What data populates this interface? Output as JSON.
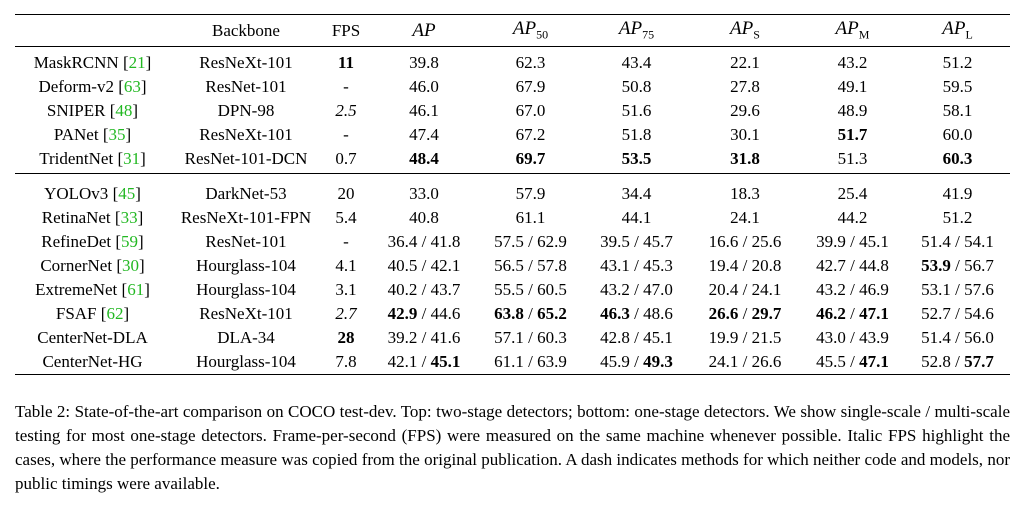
{
  "table": {
    "header": [
      "Backbone",
      "FPS",
      {
        "base": "AP"
      },
      {
        "base": "AP",
        "sub": "50"
      },
      {
        "base": "AP",
        "sub": "75"
      },
      {
        "base": "AP",
        "sub": "S"
      },
      {
        "base": "AP",
        "sub": "M"
      },
      {
        "base": "AP",
        "sub": "L"
      }
    ],
    "cite_open": "[",
    "cite_close": "]",
    "separator": "/",
    "groups": [
      [
        {
          "method": "MaskRCNN",
          "ref": "21",
          "backbone": "ResNeXt-101",
          "fps": {
            "text": "11",
            "bold": true
          },
          "metrics": [
            [
              "39.8"
            ],
            [
              "62.3"
            ],
            [
              "43.4"
            ],
            [
              "22.1"
            ],
            [
              "43.2"
            ],
            [
              "51.2"
            ]
          ]
        },
        {
          "method": "Deform-v2",
          "ref": "63",
          "backbone": "ResNet-101",
          "fps": "-",
          "metrics": [
            [
              "46.0"
            ],
            [
              "67.9"
            ],
            [
              "50.8"
            ],
            [
              "27.8"
            ],
            [
              "49.1"
            ],
            [
              "59.5"
            ]
          ]
        },
        {
          "method": "SNIPER",
          "ref": "48",
          "backbone": "DPN-98",
          "fps": {
            "text": "2.5",
            "italic": true
          },
          "metrics": [
            [
              "46.1"
            ],
            [
              "67.0"
            ],
            [
              "51.6"
            ],
            [
              "29.6"
            ],
            [
              "48.9"
            ],
            [
              "58.1"
            ]
          ]
        },
        {
          "method": "PANet",
          "ref": "35",
          "backbone": "ResNeXt-101",
          "fps": "-",
          "metrics": [
            [
              "47.4"
            ],
            [
              "67.2"
            ],
            [
              "51.8"
            ],
            [
              "30.1"
            ],
            [
              {
                "text": "51.7",
                "bold": true
              }
            ],
            [
              "60.0"
            ]
          ]
        },
        {
          "method": "TridentNet",
          "ref": "31",
          "backbone": "ResNet-101-DCN",
          "fps": "0.7",
          "metrics": [
            [
              {
                "text": "48.4",
                "bold": true
              }
            ],
            [
              {
                "text": "69.7",
                "bold": true
              }
            ],
            [
              {
                "text": "53.5",
                "bold": true
              }
            ],
            [
              {
                "text": "31.8",
                "bold": true
              }
            ],
            [
              "51.3"
            ],
            [
              {
                "text": "60.3",
                "bold": true
              }
            ]
          ]
        }
      ],
      [
        {
          "method": "YOLOv3",
          "ref": "45",
          "backbone": "DarkNet-53",
          "fps": "20",
          "metrics": [
            [
              "33.0"
            ],
            [
              "57.9"
            ],
            [
              "34.4"
            ],
            [
              "18.3"
            ],
            [
              "25.4"
            ],
            [
              "41.9"
            ]
          ]
        },
        {
          "method": "RetinaNet",
          "ref": "33",
          "backbone": "ResNeXt-101-FPN",
          "fps": "5.4",
          "metrics": [
            [
              "40.8"
            ],
            [
              "61.1"
            ],
            [
              "44.1"
            ],
            [
              "24.1"
            ],
            [
              "44.2"
            ],
            [
              "51.2"
            ]
          ]
        },
        {
          "method": "RefineDet",
          "ref": "59",
          "backbone": "ResNet-101",
          "fps": "-",
          "metrics": [
            [
              "36.4",
              "41.8"
            ],
            [
              "57.5",
              "62.9"
            ],
            [
              "39.5",
              "45.7"
            ],
            [
              "16.6",
              "25.6"
            ],
            [
              "39.9",
              "45.1"
            ],
            [
              "51.4",
              "54.1"
            ]
          ]
        },
        {
          "method": "CornerNet",
          "ref": "30",
          "backbone": "Hourglass-104",
          "fps": "4.1",
          "metrics": [
            [
              "40.5",
              "42.1"
            ],
            [
              "56.5",
              "57.8"
            ],
            [
              "43.1",
              "45.3"
            ],
            [
              "19.4",
              "20.8"
            ],
            [
              "42.7",
              "44.8"
            ],
            [
              {
                "text": "53.9",
                "bold": true
              },
              "56.7"
            ]
          ]
        },
        {
          "method": "ExtremeNet",
          "ref": "61",
          "backbone": "Hourglass-104",
          "fps": "3.1",
          "metrics": [
            [
              "40.2",
              "43.7"
            ],
            [
              "55.5",
              "60.5"
            ],
            [
              "43.2",
              "47.0"
            ],
            [
              "20.4",
              "24.1"
            ],
            [
              "43.2",
              "46.9"
            ],
            [
              "53.1",
              "57.6"
            ]
          ]
        },
        {
          "method": "FSAF",
          "ref": "62",
          "backbone": "ResNeXt-101",
          "fps": {
            "text": "2.7",
            "italic": true
          },
          "metrics": [
            [
              {
                "text": "42.9",
                "bold": true
              },
              "44.6"
            ],
            [
              {
                "text": "63.8",
                "bold": true
              },
              {
                "text": "65.2",
                "bold": true
              }
            ],
            [
              {
                "text": "46.3",
                "bold": true
              },
              "48.6"
            ],
            [
              {
                "text": "26.6",
                "bold": true
              },
              {
                "text": "29.7",
                "bold": true
              }
            ],
            [
              {
                "text": "46.2",
                "bold": true
              },
              {
                "text": "47.1",
                "bold": true
              }
            ],
            [
              "52.7",
              "54.6"
            ]
          ]
        },
        {
          "method": "CenterNet-DLA",
          "backbone": "DLA-34",
          "fps": {
            "text": "28",
            "bold": true
          },
          "metrics": [
            [
              "39.2",
              "41.6"
            ],
            [
              "57.1",
              "60.3"
            ],
            [
              "42.8",
              "45.1"
            ],
            [
              "19.9",
              "21.5"
            ],
            [
              "43.0",
              "43.9"
            ],
            [
              "51.4",
              "56.0"
            ]
          ]
        },
        {
          "method": "CenterNet-HG",
          "backbone": "Hourglass-104",
          "fps": "7.8",
          "metrics": [
            [
              "42.1",
              {
                "text": "45.1",
                "bold": true
              }
            ],
            [
              "61.1",
              "63.9"
            ],
            [
              "45.9",
              {
                "text": "49.3",
                "bold": true
              }
            ],
            [
              "24.1",
              "26.6"
            ],
            [
              "45.5",
              {
                "text": "47.1",
                "bold": true
              }
            ],
            [
              "52.8",
              {
                "text": "57.7",
                "bold": true
              }
            ]
          ]
        }
      ]
    ]
  },
  "caption": "Table 2: State-of-the-art comparison on COCO test-dev. Top: two-stage detectors; bottom: one-stage detectors. We show single-scale / multi-scale testing for most one-stage detectors. Frame-per-second (FPS) were measured on the same machine whenever possible. Italic FPS highlight the cases, where the performance measure was copied from the original publication. A dash indicates methods for which neither code and models, nor public timings were available."
}
